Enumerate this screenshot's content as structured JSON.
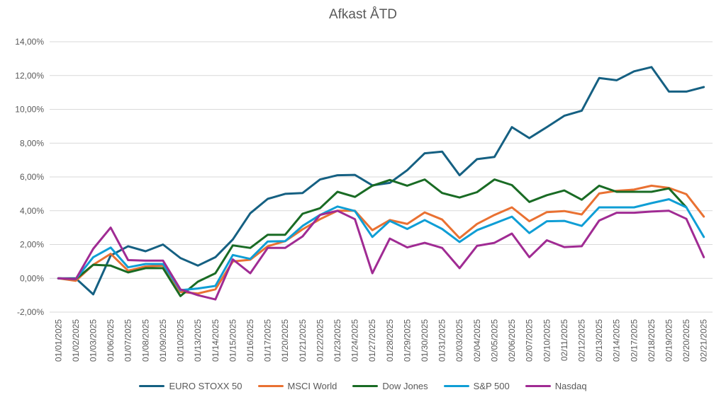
{
  "chart_data": {
    "type": "line",
    "title": "Afkast ÅTD",
    "xlabel": "",
    "ylabel": "",
    "ylim": [
      -0.02,
      0.14
    ],
    "yticks": [
      "-2,00%",
      "0,00%",
      "2,00%",
      "4,00%",
      "6,00%",
      "8,00%",
      "10,00%",
      "12,00%",
      "14,00%"
    ],
    "grid": true,
    "legend_position": "bottom",
    "x": [
      "01/01/2025",
      "01/02/2025",
      "01/03/2025",
      "01/06/2025",
      "01/07/2025",
      "01/08/2025",
      "01/09/2025",
      "01/10/2025",
      "01/13/2025",
      "01/14/2025",
      "01/15/2025",
      "01/16/2025",
      "01/17/2025",
      "01/20/2025",
      "01/21/2025",
      "01/22/2025",
      "01/23/2025",
      "01/24/2025",
      "01/27/2025",
      "01/28/2025",
      "01/29/2025",
      "01/30/2025",
      "01/31/2025",
      "02/03/2025",
      "02/04/2025",
      "02/05/2025",
      "02/06/2025",
      "02/07/2025",
      "02/10/2025",
      "02/11/2025",
      "02/12/2025",
      "02/13/2025",
      "02/14/2025",
      "02/17/2025",
      "02/18/2025",
      "02/19/2025",
      "02/20/2025",
      "02/21/2025"
    ],
    "series": [
      {
        "name": "EURO STOXX 50",
        "color": "#156082",
        "values": [
          0.0,
          0.0,
          -0.0095,
          0.0135,
          0.019,
          0.016,
          0.02,
          0.012,
          0.0075,
          0.0125,
          0.023,
          0.0385,
          0.047,
          0.05,
          0.0505,
          0.0585,
          0.061,
          0.0612,
          0.055,
          0.0565,
          0.064,
          0.074,
          0.075,
          0.061,
          0.0705,
          0.0718,
          0.0895,
          0.083,
          0.0895,
          0.0962,
          0.0992,
          0.1185,
          0.1172,
          0.1225,
          0.125,
          0.1105,
          0.1105,
          0.1132
        ]
      },
      {
        "name": "MSCI World",
        "color": "#E97132",
        "values": [
          0.0,
          -0.0015,
          0.008,
          0.0145,
          0.0045,
          0.007,
          0.0075,
          -0.008,
          -0.009,
          -0.0065,
          0.01,
          0.011,
          0.019,
          0.022,
          0.029,
          0.035,
          0.04,
          0.04,
          0.0285,
          0.0345,
          0.0322,
          0.039,
          0.0348,
          0.0238,
          0.0322,
          0.0375,
          0.042,
          0.0338,
          0.0392,
          0.0398,
          0.0378,
          0.0502,
          0.0518,
          0.0525,
          0.0548,
          0.0535,
          0.0498,
          0.0365
        ]
      },
      {
        "name": "Dow Jones",
        "color": "#196B24",
        "values": [
          0.0,
          -0.0005,
          0.008,
          0.0075,
          0.0035,
          0.006,
          0.006,
          -0.0105,
          -0.002,
          0.003,
          0.0195,
          0.018,
          0.0258,
          0.0258,
          0.0382,
          0.0415,
          0.0512,
          0.0482,
          0.0548,
          0.0582,
          0.0548,
          0.0585,
          0.0505,
          0.0478,
          0.051,
          0.0585,
          0.0552,
          0.0452,
          0.0492,
          0.052,
          0.0465,
          0.0548,
          0.0512,
          0.0512,
          0.0512,
          0.0532,
          0.042,
          null
        ]
      },
      {
        "name": "S&P 500",
        "color": "#0F9ED5",
        "values": [
          0.0,
          -0.0005,
          0.0125,
          0.0182,
          0.0065,
          0.0085,
          0.0085,
          -0.007,
          -0.006,
          -0.0045,
          0.0138,
          0.0115,
          0.0218,
          0.022,
          0.031,
          0.0375,
          0.0425,
          0.0398,
          0.0245,
          0.034,
          0.0292,
          0.0345,
          0.0292,
          0.0215,
          0.0285,
          0.0325,
          0.0365,
          0.0268,
          0.0338,
          0.034,
          0.031,
          0.042,
          0.042,
          0.042,
          0.0445,
          0.0468,
          0.042,
          0.0245
        ]
      },
      {
        "name": "Nasdaq",
        "color": "#A02B93",
        "values": [
          0.0,
          -0.0005,
          0.0175,
          0.03,
          0.0108,
          0.0105,
          0.0105,
          -0.0065,
          -0.01,
          -0.0125,
          0.0112,
          0.003,
          0.018,
          0.018,
          0.0248,
          0.0375,
          0.04,
          0.035,
          0.003,
          0.0235,
          0.0183,
          0.021,
          0.018,
          0.006,
          0.0192,
          0.021,
          0.0265,
          0.0125,
          0.0225,
          0.0185,
          0.019,
          0.0342,
          0.0388,
          0.0388,
          0.0395,
          0.04,
          0.0352,
          0.0125
        ]
      }
    ]
  }
}
